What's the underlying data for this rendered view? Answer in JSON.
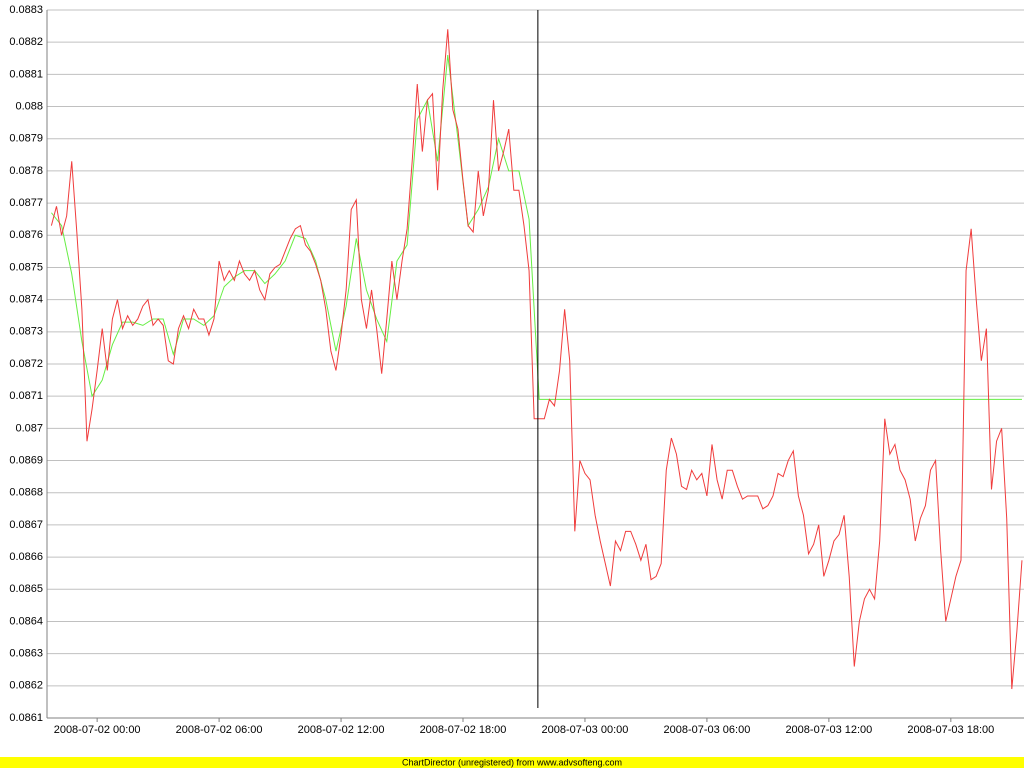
{
  "chart_data": {
    "type": "line",
    "xlim": [
      "2008-07-01 21:32",
      "2008-07-03 21:36"
    ],
    "xticks": [
      "2008-07-02 00:00",
      "2008-07-02 06:00",
      "2008-07-02 12:00",
      "2008-07-02 18:00",
      "2008-07-03 00:00",
      "2008-07-03 06:00",
      "2008-07-03 12:00",
      "2008-07-03 18:00"
    ],
    "ylim": [
      0.0861,
      0.0883
    ],
    "yticks": [
      0.0861,
      0.0862,
      0.0863,
      0.0864,
      0.0865,
      0.0866,
      0.0867,
      0.0868,
      0.0869,
      0.087,
      0.0871,
      0.0872,
      0.0873,
      0.0874,
      0.0875,
      0.0876,
      0.0877,
      0.0878,
      0.0879,
      0.088,
      0.0881,
      0.0882,
      0.0883
    ],
    "grid": true,
    "vline": "2008-07-02 21:41",
    "series": [
      {
        "color": "#66ee44",
        "x": [
          "2008-07-01 21:45",
          "2008-07-01 22:15",
          "2008-07-01 22:45",
          "2008-07-01 23:15",
          "2008-07-01 23:45",
          "2008-07-02 00:15",
          "2008-07-02 00:45",
          "2008-07-02 01:15",
          "2008-07-02 01:45",
          "2008-07-02 02:15",
          "2008-07-02 02:45",
          "2008-07-02 03:15",
          "2008-07-02 03:45",
          "2008-07-02 04:15",
          "2008-07-02 04:45",
          "2008-07-02 05:15",
          "2008-07-02 05:45",
          "2008-07-02 06:15",
          "2008-07-02 06:45",
          "2008-07-02 07:15",
          "2008-07-02 07:45",
          "2008-07-02 08:15",
          "2008-07-02 08:45",
          "2008-07-02 09:15",
          "2008-07-02 09:45",
          "2008-07-02 10:15",
          "2008-07-02 10:45",
          "2008-07-02 11:15",
          "2008-07-02 11:45",
          "2008-07-02 12:15",
          "2008-07-02 12:45",
          "2008-07-02 13:15",
          "2008-07-02 13:45",
          "2008-07-02 14:15",
          "2008-07-02 14:45",
          "2008-07-02 15:15",
          "2008-07-02 15:45",
          "2008-07-02 16:15",
          "2008-07-02 16:45",
          "2008-07-02 17:15",
          "2008-07-02 17:45",
          "2008-07-02 18:15",
          "2008-07-02 18:45",
          "2008-07-02 19:15",
          "2008-07-02 19:45",
          "2008-07-02 20:15",
          "2008-07-02 20:45",
          "2008-07-02 21:15",
          "2008-07-02 21:45",
          "2008-07-03 21:30"
        ],
        "values": [
          0.08767,
          0.08763,
          0.08748,
          0.08727,
          0.0871,
          0.08715,
          0.08726,
          0.08733,
          0.08733,
          0.08732,
          0.08734,
          0.08734,
          0.08723,
          0.08734,
          0.08734,
          0.08732,
          0.08735,
          0.08744,
          0.08747,
          0.08749,
          0.08749,
          0.08745,
          0.08748,
          0.08752,
          0.0876,
          0.08759,
          0.08752,
          0.0874,
          0.08724,
          0.08738,
          0.08759,
          0.08743,
          0.08734,
          0.08727,
          0.08752,
          0.08757,
          0.08796,
          0.08802,
          0.08783,
          0.08816,
          0.0879,
          0.08763,
          0.08768,
          0.08775,
          0.0879,
          0.0878,
          0.0878,
          0.08765,
          0.08709,
          0.08709
        ]
      },
      {
        "color": "#f03c3c",
        "x": [
          "2008-07-01 21:45",
          "2008-07-01 22:00",
          "2008-07-01 22:15",
          "2008-07-01 22:30",
          "2008-07-01 22:45",
          "2008-07-01 23:00",
          "2008-07-01 23:15",
          "2008-07-01 23:30",
          "2008-07-01 23:45",
          "2008-07-02 00:00",
          "2008-07-02 00:15",
          "2008-07-02 00:30",
          "2008-07-02 00:45",
          "2008-07-02 01:00",
          "2008-07-02 01:15",
          "2008-07-02 01:30",
          "2008-07-02 01:45",
          "2008-07-02 02:00",
          "2008-07-02 02:15",
          "2008-07-02 02:30",
          "2008-07-02 02:45",
          "2008-07-02 03:00",
          "2008-07-02 03:15",
          "2008-07-02 03:30",
          "2008-07-02 03:45",
          "2008-07-02 04:00",
          "2008-07-02 04:15",
          "2008-07-02 04:30",
          "2008-07-02 04:45",
          "2008-07-02 05:00",
          "2008-07-02 05:15",
          "2008-07-02 05:30",
          "2008-07-02 05:45",
          "2008-07-02 06:00",
          "2008-07-02 06:15",
          "2008-07-02 06:30",
          "2008-07-02 06:45",
          "2008-07-02 07:00",
          "2008-07-02 07:15",
          "2008-07-02 07:30",
          "2008-07-02 07:45",
          "2008-07-02 08:00",
          "2008-07-02 08:15",
          "2008-07-02 08:30",
          "2008-07-02 08:45",
          "2008-07-02 09:00",
          "2008-07-02 09:15",
          "2008-07-02 09:30",
          "2008-07-02 09:45",
          "2008-07-02 10:00",
          "2008-07-02 10:15",
          "2008-07-02 10:30",
          "2008-07-02 10:45",
          "2008-07-02 11:00",
          "2008-07-02 11:15",
          "2008-07-02 11:30",
          "2008-07-02 11:45",
          "2008-07-02 12:00",
          "2008-07-02 12:15",
          "2008-07-02 12:30",
          "2008-07-02 12:45",
          "2008-07-02 13:00",
          "2008-07-02 13:15",
          "2008-07-02 13:30",
          "2008-07-02 13:45",
          "2008-07-02 14:00",
          "2008-07-02 14:15",
          "2008-07-02 14:30",
          "2008-07-02 14:45",
          "2008-07-02 15:00",
          "2008-07-02 15:15",
          "2008-07-02 15:30",
          "2008-07-02 15:45",
          "2008-07-02 16:00",
          "2008-07-02 16:15",
          "2008-07-02 16:30",
          "2008-07-02 16:45",
          "2008-07-02 17:00",
          "2008-07-02 17:15",
          "2008-07-02 17:30",
          "2008-07-02 17:45",
          "2008-07-02 18:00",
          "2008-07-02 18:15",
          "2008-07-02 18:30",
          "2008-07-02 18:45",
          "2008-07-02 19:00",
          "2008-07-02 19:15",
          "2008-07-02 19:30",
          "2008-07-02 19:45",
          "2008-07-02 20:00",
          "2008-07-02 20:15",
          "2008-07-02 20:30",
          "2008-07-02 20:45",
          "2008-07-02 21:00",
          "2008-07-02 21:15",
          "2008-07-02 21:30",
          "2008-07-02 21:45",
          "2008-07-02 22:00",
          "2008-07-02 22:15",
          "2008-07-02 22:30",
          "2008-07-02 22:45",
          "2008-07-02 23:00",
          "2008-07-02 23:15",
          "2008-07-02 23:30",
          "2008-07-02 23:45",
          "2008-07-03 00:00",
          "2008-07-03 00:15",
          "2008-07-03 00:30",
          "2008-07-03 00:45",
          "2008-07-03 01:00",
          "2008-07-03 01:15",
          "2008-07-03 01:30",
          "2008-07-03 01:45",
          "2008-07-03 02:00",
          "2008-07-03 02:15",
          "2008-07-03 02:30",
          "2008-07-03 02:45",
          "2008-07-03 03:00",
          "2008-07-03 03:15",
          "2008-07-03 03:30",
          "2008-07-03 03:45",
          "2008-07-03 04:00",
          "2008-07-03 04:15",
          "2008-07-03 04:30",
          "2008-07-03 04:45",
          "2008-07-03 05:00",
          "2008-07-03 05:15",
          "2008-07-03 05:30",
          "2008-07-03 05:45",
          "2008-07-03 06:00",
          "2008-07-03 06:15",
          "2008-07-03 06:30",
          "2008-07-03 06:45",
          "2008-07-03 07:00",
          "2008-07-03 07:15",
          "2008-07-03 07:30",
          "2008-07-03 07:45",
          "2008-07-03 08:00",
          "2008-07-03 08:15",
          "2008-07-03 08:30",
          "2008-07-03 08:45",
          "2008-07-03 09:00",
          "2008-07-03 09:15",
          "2008-07-03 09:30",
          "2008-07-03 09:45",
          "2008-07-03 10:00",
          "2008-07-03 10:15",
          "2008-07-03 10:30",
          "2008-07-03 10:45",
          "2008-07-03 11:00",
          "2008-07-03 11:15",
          "2008-07-03 11:30",
          "2008-07-03 11:45",
          "2008-07-03 12:00",
          "2008-07-03 12:15",
          "2008-07-03 12:30",
          "2008-07-03 12:45",
          "2008-07-03 13:00",
          "2008-07-03 13:15",
          "2008-07-03 13:30",
          "2008-07-03 13:45",
          "2008-07-03 14:00",
          "2008-07-03 14:15",
          "2008-07-03 14:30",
          "2008-07-03 14:45",
          "2008-07-03 15:00",
          "2008-07-03 15:15",
          "2008-07-03 15:30",
          "2008-07-03 15:45",
          "2008-07-03 16:00",
          "2008-07-03 16:15",
          "2008-07-03 16:30",
          "2008-07-03 16:45",
          "2008-07-03 17:00",
          "2008-07-03 17:15",
          "2008-07-03 17:30",
          "2008-07-03 17:45",
          "2008-07-03 18:00",
          "2008-07-03 18:15",
          "2008-07-03 18:30",
          "2008-07-03 18:45",
          "2008-07-03 19:00",
          "2008-07-03 19:15",
          "2008-07-03 19:30",
          "2008-07-03 19:45",
          "2008-07-03 20:00",
          "2008-07-03 20:15",
          "2008-07-03 20:30",
          "2008-07-03 20:45",
          "2008-07-03 21:00",
          "2008-07-03 21:15",
          "2008-07-03 21:30"
        ],
        "values": [
          0.08763,
          0.08769,
          0.0876,
          0.08766,
          0.08783,
          0.08761,
          0.08737,
          0.08696,
          0.08706,
          0.08718,
          0.08731,
          0.08718,
          0.08734,
          0.0874,
          0.08731,
          0.08735,
          0.08732,
          0.08734,
          0.08738,
          0.0874,
          0.08732,
          0.08734,
          0.08732,
          0.08721,
          0.0872,
          0.08731,
          0.08735,
          0.08731,
          0.08737,
          0.08734,
          0.08734,
          0.08729,
          0.08734,
          0.08752,
          0.08746,
          0.08749,
          0.08746,
          0.08752,
          0.08748,
          0.08746,
          0.08749,
          0.08743,
          0.0874,
          0.08748,
          0.0875,
          0.08751,
          0.08755,
          0.08759,
          0.08762,
          0.08763,
          0.08757,
          0.08755,
          0.08751,
          0.08746,
          0.08737,
          0.08724,
          0.08718,
          0.08729,
          0.08743,
          0.08768,
          0.08771,
          0.0874,
          0.08731,
          0.08743,
          0.08731,
          0.08717,
          0.08734,
          0.08752,
          0.0874,
          0.08752,
          0.08762,
          0.08783,
          0.08807,
          0.08786,
          0.08802,
          0.08804,
          0.08774,
          0.08805,
          0.08824,
          0.08799,
          0.08793,
          0.08777,
          0.08763,
          0.08761,
          0.0878,
          0.08766,
          0.08774,
          0.08802,
          0.0878,
          0.08786,
          0.08793,
          0.08774,
          0.08774,
          0.08763,
          0.08749,
          0.08703,
          0.08703,
          0.08703,
          0.08709,
          0.08707,
          0.08718,
          0.08737,
          0.08721,
          0.08668,
          0.0869,
          0.08686,
          0.08684,
          0.08673,
          0.08665,
          0.08658,
          0.08651,
          0.08665,
          0.08662,
          0.08668,
          0.08668,
          0.08664,
          0.08659,
          0.08664,
          0.08653,
          0.08654,
          0.08658,
          0.08687,
          0.08697,
          0.08692,
          0.08682,
          0.08681,
          0.08687,
          0.08684,
          0.08686,
          0.08679,
          0.08695,
          0.08684,
          0.08678,
          0.08687,
          0.08687,
          0.08682,
          0.08678,
          0.08679,
          0.08679,
          0.08679,
          0.08675,
          0.08676,
          0.08679,
          0.08686,
          0.08685,
          0.0869,
          0.08693,
          0.08679,
          0.08673,
          0.08661,
          0.08664,
          0.0867,
          0.08654,
          0.08659,
          0.08665,
          0.08667,
          0.08673,
          0.08654,
          0.08626,
          0.0864,
          0.08647,
          0.0865,
          0.08647,
          0.08665,
          0.08703,
          0.08692,
          0.08695,
          0.08687,
          0.08684,
          0.08678,
          0.08665,
          0.08672,
          0.08676,
          0.08687,
          0.0869,
          0.08662,
          0.0864,
          0.08647,
          0.08654,
          0.08659,
          0.08749,
          0.08762,
          0.0874,
          0.08721,
          0.08731,
          0.08681,
          0.08696,
          0.087,
          0.08672,
          0.08619,
          0.08637,
          0.08659
        ]
      }
    ],
    "footer": "ChartDirector (unregistered) from www.advsofteng.com"
  }
}
